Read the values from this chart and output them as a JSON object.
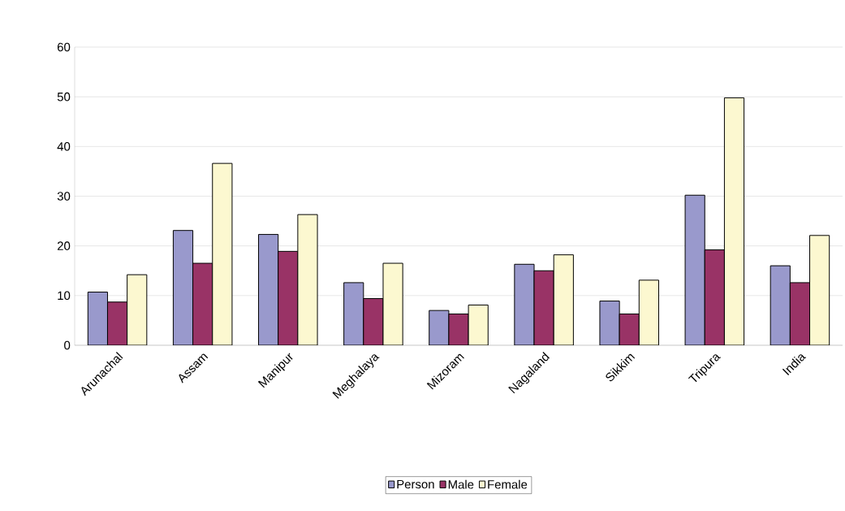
{
  "chart_data": {
    "type": "bar",
    "categories": [
      "Arunachal",
      "Assam",
      "Manipur",
      "Meghalaya",
      "Mizoram",
      "Nagaland",
      "Sikkim",
      "Tripura",
      "India"
    ],
    "series": [
      {
        "name": "Person",
        "color": "#9999cc",
        "values": [
          10.7,
          23.1,
          22.3,
          12.6,
          7.0,
          16.3,
          8.9,
          30.2,
          16.0
        ]
      },
      {
        "name": "Male",
        "color": "#993366",
        "values": [
          8.7,
          16.5,
          18.9,
          9.4,
          6.3,
          15.0,
          6.3,
          19.2,
          12.6
        ]
      },
      {
        "name": "Female",
        "color": "#fcf8d0",
        "values": [
          14.2,
          36.6,
          26.3,
          16.5,
          8.1,
          18.2,
          13.1,
          49.8,
          22.1
        ]
      }
    ],
    "ylim": [
      0,
      60
    ],
    "yticks": [
      0,
      10,
      20,
      30,
      40,
      50,
      60
    ],
    "grid": "y",
    "legend": "bottom"
  }
}
